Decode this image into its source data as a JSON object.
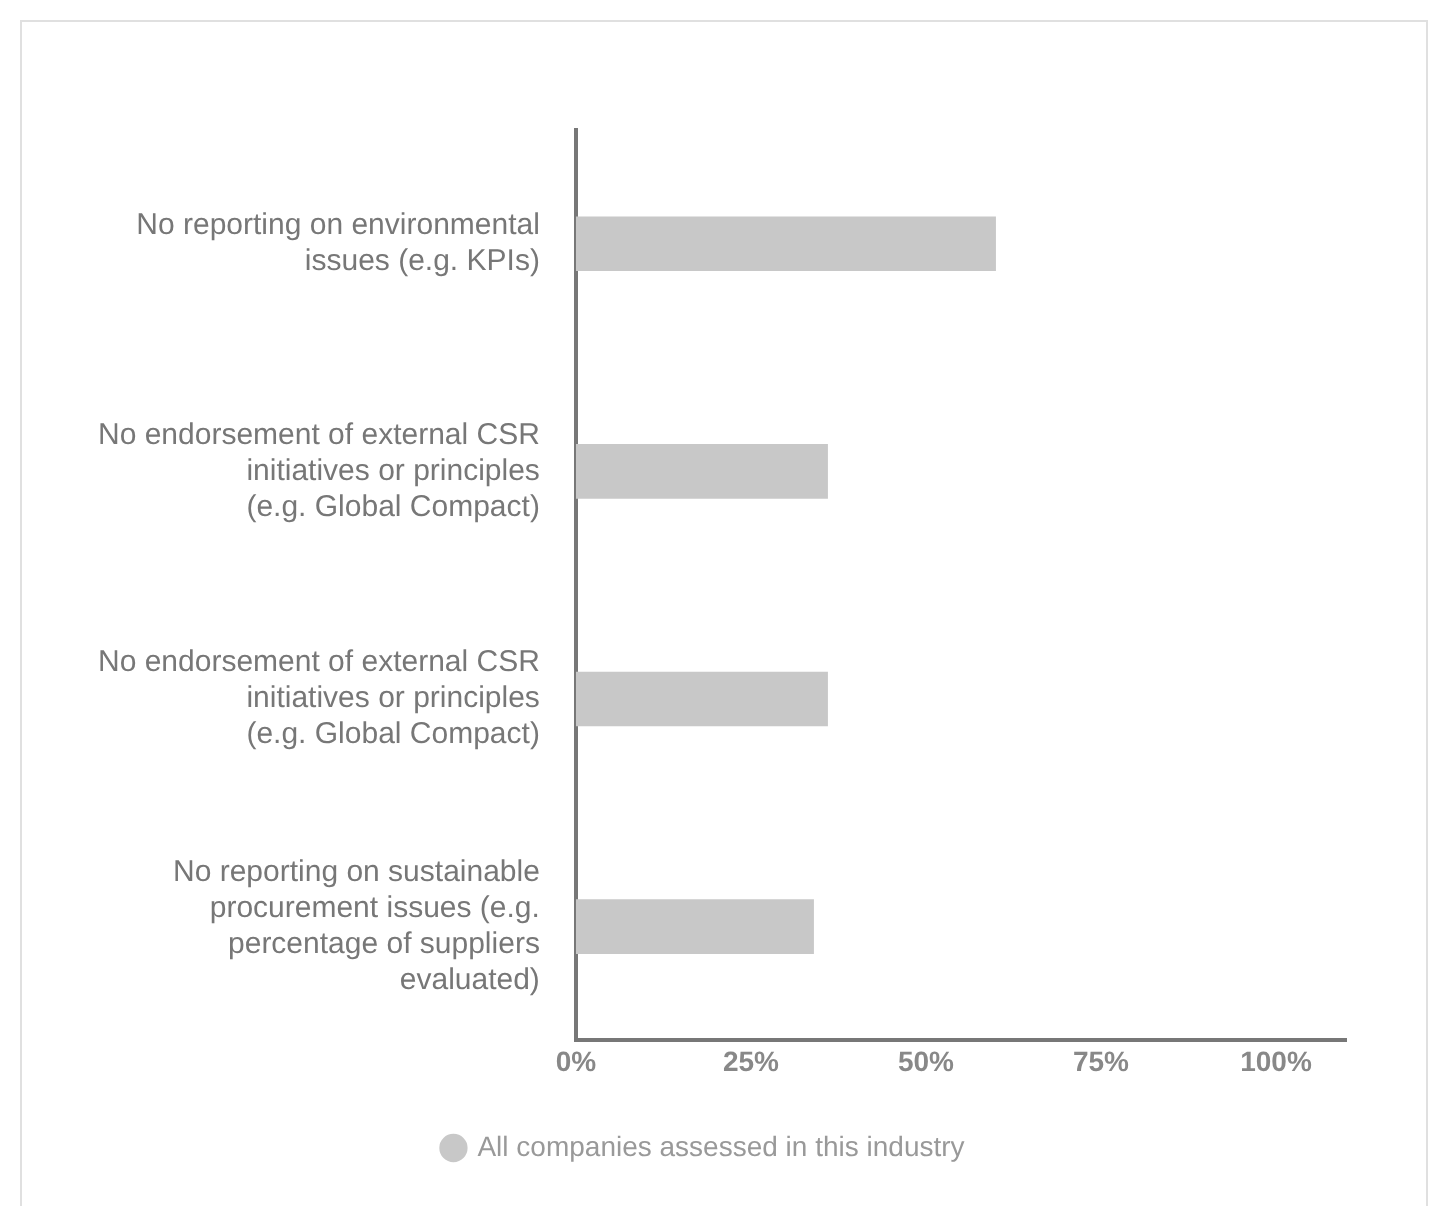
{
  "chart_data": {
    "type": "bar",
    "orientation": "horizontal",
    "categories": [
      "No reporting on environmental issues (e.g. KPIs)",
      "No endorsement of external CSR initiatives or principles (e.g. Global Compact)",
      "No endorsement of external CSR initiatives or principles (e.g. Global Compact)",
      "No reporting on sustainable procurement issues (e.g. percentage of suppliers evaluated)"
    ],
    "series": [
      {
        "name": "All companies assessed in this industry",
        "color": "#c8c8c8",
        "values": [
          60,
          36,
          36,
          34
        ]
      }
    ],
    "xlim": [
      0,
      110
    ],
    "xticks": [
      {
        "value": 0,
        "label": "0%"
      },
      {
        "value": 25,
        "label": "25%"
      },
      {
        "value": 50,
        "label": "50%"
      },
      {
        "value": 75,
        "label": "75%"
      },
      {
        "value": 100,
        "label": "100%"
      }
    ],
    "grid": false,
    "legend": "bottom"
  }
}
